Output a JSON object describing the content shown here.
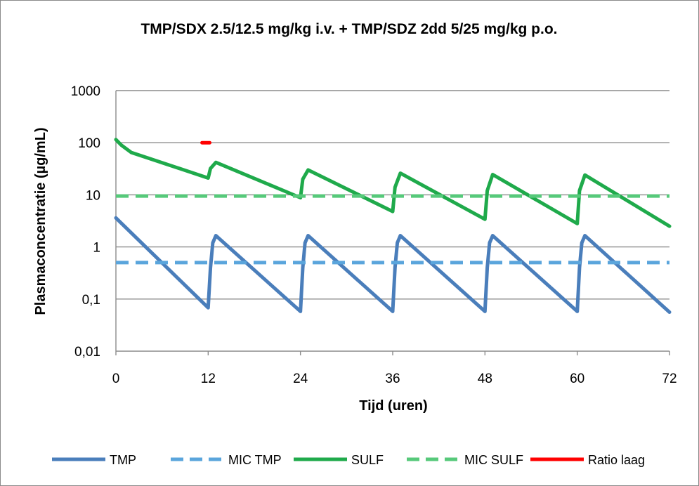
{
  "chart_data": {
    "type": "line",
    "title": "TMP/SDX 2.5/12.5 mg/kg i.v. + TMP/SDZ 2dd 5/25 mg/kg p.o.",
    "xlabel": "Tijd (uren)",
    "ylabel": "Plasmaconcentratie (µg/mL)",
    "xlim": [
      0,
      72
    ],
    "ylim": [
      0.01,
      1000
    ],
    "yscale": "log",
    "grid": true,
    "legend_position": "bottom",
    "x_ticks": [
      0,
      12,
      24,
      36,
      48,
      60,
      72
    ],
    "x_tick_labels": [
      "0",
      "12",
      "24",
      "36",
      "48",
      "60",
      "72"
    ],
    "y_ticks": [
      0.01,
      0.1,
      1,
      10,
      100,
      1000
    ],
    "y_tick_labels": [
      "0,01",
      "0,1",
      "1",
      "10",
      "100",
      "1000"
    ],
    "series": [
      {
        "name": "TMP",
        "color": "#4a7ebb",
        "style": "solid",
        "points": [
          [
            0,
            3.6
          ],
          [
            12,
            0.068
          ],
          [
            12.3,
            0.4
          ],
          [
            12.6,
            1.2
          ],
          [
            13,
            1.65
          ],
          [
            24,
            0.058
          ],
          [
            24.3,
            0.4
          ],
          [
            24.6,
            1.2
          ],
          [
            25,
            1.65
          ],
          [
            36,
            0.058
          ],
          [
            36.3,
            0.4
          ],
          [
            36.6,
            1.2
          ],
          [
            37,
            1.65
          ],
          [
            48,
            0.058
          ],
          [
            48.3,
            0.4
          ],
          [
            48.6,
            1.2
          ],
          [
            49,
            1.65
          ],
          [
            60,
            0.058
          ],
          [
            60.3,
            0.4
          ],
          [
            60.6,
            1.2
          ],
          [
            61,
            1.65
          ],
          [
            72,
            0.056
          ]
        ]
      },
      {
        "name": "MIC TMP",
        "color": "#5aa5dc",
        "style": "dashed",
        "points": [
          [
            0,
            0.5
          ],
          [
            72,
            0.5
          ]
        ]
      },
      {
        "name": "SULF",
        "color": "#1faa4b",
        "style": "solid",
        "points": [
          [
            0,
            115
          ],
          [
            0.7,
            90
          ],
          [
            2,
            65
          ],
          [
            12,
            21
          ],
          [
            12.3,
            32
          ],
          [
            13,
            42
          ],
          [
            24,
            8.8
          ],
          [
            24.3,
            20
          ],
          [
            25,
            30
          ],
          [
            36,
            4.8
          ],
          [
            36.3,
            14
          ],
          [
            37,
            26
          ],
          [
            48,
            3.4
          ],
          [
            48.3,
            12
          ],
          [
            49,
            24.5
          ],
          [
            60,
            2.8
          ],
          [
            60.3,
            12
          ],
          [
            61,
            24
          ],
          [
            72,
            2.5
          ]
        ]
      },
      {
        "name": "MIC SULF",
        "color": "#56c97a",
        "style": "dashed",
        "points": [
          [
            0,
            9.5
          ],
          [
            72,
            9.5
          ]
        ]
      },
      {
        "name": "Ratio laag",
        "color": "#ff0000",
        "style": "solid",
        "points": [
          [
            11.2,
            100
          ],
          [
            12.2,
            100
          ]
        ]
      }
    ]
  }
}
